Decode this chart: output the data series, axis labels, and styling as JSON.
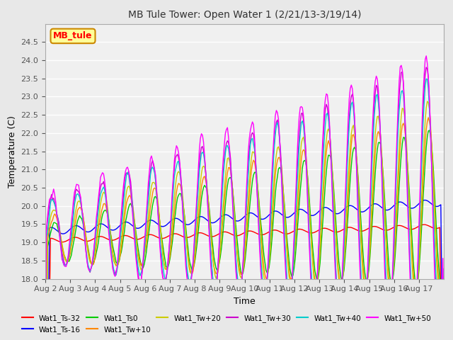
{
  "title": "MB Tule Tower: Open Water 1 (2/21/13-3/19/14)",
  "xlabel": "Time",
  "ylabel": "Temperature (C)",
  "ylim": [
    18.0,
    25.0
  ],
  "yticks": [
    18.0,
    18.5,
    19.0,
    19.5,
    20.0,
    20.5,
    21.0,
    21.5,
    22.0,
    22.5,
    23.0,
    23.5,
    24.0,
    24.5
  ],
  "xtick_labels": [
    "Aug 2",
    "Aug 3",
    "Aug 4",
    "Aug 5",
    "Aug 6",
    "Aug 7",
    "Aug 8",
    "Aug 9",
    "Aug 10",
    "Aug 11",
    "Aug 12",
    "Aug 13",
    "Aug 14",
    "Aug 15",
    "Aug 16",
    "Aug 17"
  ],
  "series_colors": {
    "Wat1_Ts-32": "#ff0000",
    "Wat1_Ts-16": "#0000ff",
    "Wat1_Ts0": "#00cc00",
    "Wat1_Tw+10": "#ff8800",
    "Wat1_Tw+20": "#cccc00",
    "Wat1_Tw+30": "#cc00cc",
    "Wat1_Tw+40": "#00cccc",
    "Wat1_Tw+50": "#ff00ff"
  },
  "legend_box_color": "#ffff99",
  "legend_box_border": "#cc8800",
  "legend_text": "MB_tule",
  "background_color": "#e8e8e8",
  "plot_bg_color": "#f0f0f0",
  "grid_color": "#ffffff"
}
